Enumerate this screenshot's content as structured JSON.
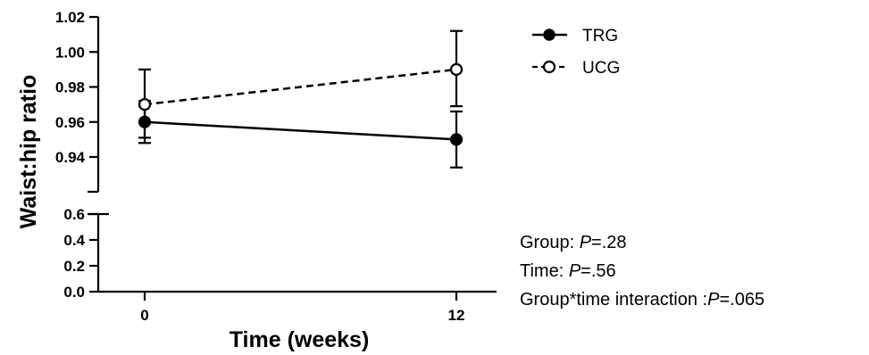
{
  "chart_data": {
    "type": "line",
    "xlabel": "Time (weeks)",
    "ylabel": "Waist:hip ratio",
    "x": [
      0,
      12
    ],
    "xticks": [
      "0",
      "12"
    ],
    "y_axis_broken": true,
    "ylim_lower": [
      0.0,
      0.6
    ],
    "ylim_upper": [
      0.93,
      1.02
    ],
    "yticks_lower": [
      "0.0",
      "0.2",
      "0.4",
      "0.6"
    ],
    "yticks_upper": [
      "0.94",
      "0.96",
      "0.98",
      "1.00",
      "1.02"
    ],
    "series": [
      {
        "name": "TRG",
        "marker": "filled-circle",
        "line_style": "solid",
        "values": [
          0.96,
          0.95
        ],
        "error_low": [
          0.948,
          0.934
        ],
        "error_high": [
          0.972,
          0.966
        ]
      },
      {
        "name": "UCG",
        "marker": "open-circle",
        "line_style": "dashed",
        "values": [
          0.97,
          0.99
        ],
        "error_low": [
          0.951,
          0.969
        ],
        "error_high": [
          0.99,
          1.012
        ]
      }
    ],
    "legend_position": "top-right",
    "grid": false
  },
  "annotations": {
    "group_prefix": "Group: ",
    "group_p_label": "P",
    "group_p_value": "=.28",
    "time_prefix": "Time: ",
    "time_p_label": "P",
    "time_p_value": "=.56",
    "interaction_prefix": "Group*time interaction :",
    "interaction_p_label": "P",
    "interaction_p_value": "=.065"
  },
  "colors": {
    "line": "#000000",
    "background": "#ffffff"
  }
}
